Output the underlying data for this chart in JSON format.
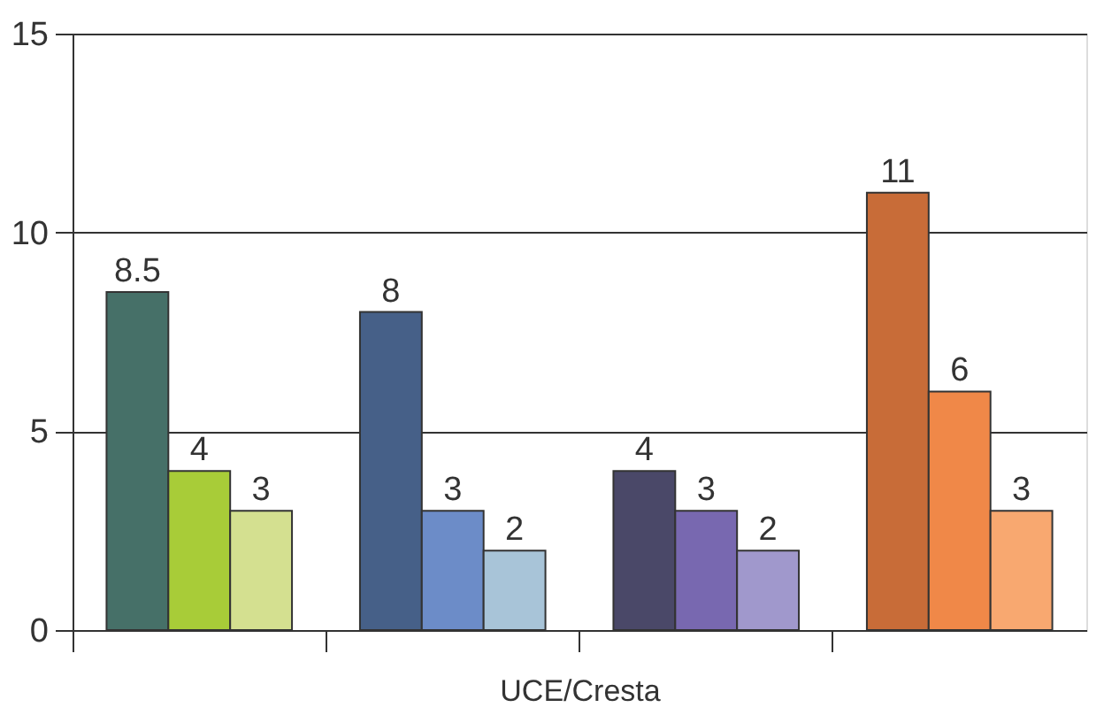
{
  "chart_data": {
    "type": "bar",
    "xlabel": "UCE/Cresta",
    "categories": [
      null,
      null,
      null,
      null
    ],
    "series": [
      {
        "colors": [
          "#467068",
          "#466088",
          "#4a4868",
          "#c86c38"
        ],
        "values": [
          8.5,
          8,
          4,
          11
        ]
      },
      {
        "colors": [
          "#a8cc38",
          "#6c8cc8",
          "#7868b0",
          "#f08848"
        ],
        "values": [
          4,
          3,
          3,
          6
        ]
      },
      {
        "colors": [
          "#d4e090",
          "#a8c4d8",
          "#a098cc",
          "#f8a870"
        ],
        "values": [
          3,
          2,
          2,
          3
        ]
      }
    ],
    "ylim": [
      0,
      15
    ],
    "yticks": [
      0,
      5,
      10,
      15
    ],
    "grid": "y",
    "data_labels": true,
    "tick_labels": "y"
  }
}
